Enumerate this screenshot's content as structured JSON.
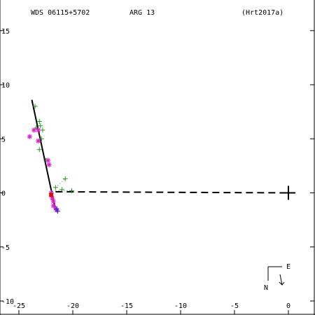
{
  "header": {
    "wds_id": "WDS 06115+5702",
    "discoverer": "ARG  13",
    "reference": "(Hrt2017a)"
  },
  "compass": {
    "north": "N",
    "east": "E"
  },
  "chart_data": {
    "type": "scatter",
    "title": "WDS 06115+5702",
    "xlim": [
      1.3,
      -26
    ],
    "ylim": [
      -10.2,
      17.6
    ],
    "x_ticks": [
      -25,
      -20,
      -15,
      -10,
      -5,
      0
    ],
    "y_ticks": [
      15,
      10,
      5,
      0,
      -5,
      -10
    ],
    "grid": false,
    "series": [
      {
        "marker": "green-plus",
        "points": [
          [
            -23.5,
            8.0
          ],
          [
            -23.1,
            6.6
          ],
          [
            -23.0,
            6.2
          ],
          [
            -23.4,
            6.0
          ],
          [
            -22.8,
            5.8
          ],
          [
            -22.9,
            5.0
          ],
          [
            -23.1,
            4.0
          ],
          [
            -22.5,
            3.0
          ],
          [
            -21.6,
            0.5
          ],
          [
            -21.0,
            0.3
          ],
          [
            -20.7,
            1.3
          ],
          [
            -20.1,
            0.2
          ]
        ]
      },
      {
        "marker": "magenta-asterisk",
        "points": [
          [
            -24.0,
            5.2
          ],
          [
            -23.6,
            5.8
          ],
          [
            -23.2,
            5.8
          ],
          [
            -23.2,
            4.8
          ],
          [
            -22.3,
            3.0
          ],
          [
            -22.2,
            2.6
          ],
          [
            -22.0,
            0.0
          ],
          [
            -21.9,
            -0.5
          ],
          [
            -21.8,
            -0.8
          ],
          [
            -21.8,
            -1.2
          ],
          [
            -21.6,
            -1.4
          ],
          [
            -21.5,
            -1.6
          ]
        ]
      },
      {
        "marker": "blue-plus",
        "points": [
          [
            -21.4,
            -1.7
          ],
          [
            -21.5,
            -1.5
          ]
        ]
      },
      {
        "marker": "red-square",
        "points": [
          [
            -22.0,
            -0.2
          ]
        ]
      }
    ],
    "orbit_line": {
      "from": [
        -23.8,
        8.6
      ],
      "to": [
        -21.6,
        -1.6
      ]
    },
    "dotted_residuals": [
      {
        "from": [
          -21.6,
          0.5
        ],
        "to": [
          -20.7,
          1.3
        ]
      },
      {
        "from": [
          -21.6,
          0.2
        ],
        "to": [
          -20.1,
          0.2
        ]
      }
    ],
    "node_line": {
      "from": [
        -21.6,
        0.1
      ],
      "to": [
        0,
        0
      ]
    },
    "primary": [
      0,
      0
    ]
  }
}
